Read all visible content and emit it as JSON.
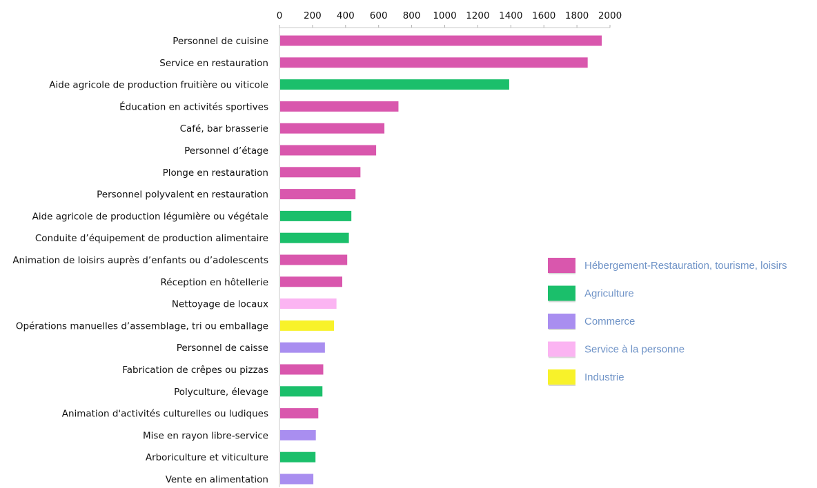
{
  "chart_data": {
    "type": "bar",
    "orientation": "horizontal",
    "title": "",
    "xlabel": "",
    "ylabel": "",
    "xlim": [
      0,
      2000
    ],
    "x_ticks": [
      0,
      200,
      400,
      600,
      800,
      1000,
      1200,
      1400,
      1600,
      1800,
      2000
    ],
    "x_axis_position": "top",
    "grid": false,
    "legend_position": "right",
    "series_colors": {
      "Hébergement-Restauration, tourisme, loisirs": "#d957ad",
      "Agriculture": "#1bbf6b",
      "Commerce": "#a98ef0",
      "Service à la personne": "#fbb4f2",
      "Industrie": "#f8f22a"
    },
    "legend": [
      "Hébergement-Restauration, tourisme, loisirs",
      "Agriculture",
      "Commerce",
      "Service à la personne",
      "Industrie"
    ],
    "bars": [
      {
        "label": "Personnel de cuisine",
        "value": 1950,
        "series": "Hébergement-Restauration, tourisme, loisirs"
      },
      {
        "label": "Service en restauration",
        "value": 1865,
        "series": "Hébergement-Restauration, tourisme, loisirs"
      },
      {
        "label": "Aide agricole de production fruitière ou viticole",
        "value": 1390,
        "series": "Agriculture"
      },
      {
        "label": "Éducation en activités sportives",
        "value": 720,
        "series": "Hébergement-Restauration, tourisme, loisirs"
      },
      {
        "label": "Café, bar brasserie",
        "value": 635,
        "series": "Hébergement-Restauration, tourisme, loisirs"
      },
      {
        "label": "Personnel d’étage",
        "value": 585,
        "series": "Hébergement-Restauration, tourisme, loisirs"
      },
      {
        "label": "Plonge en restauration",
        "value": 490,
        "series": "Hébergement-Restauration, tourisme, loisirs"
      },
      {
        "label": "Personnel polyvalent en restauration",
        "value": 460,
        "series": "Hébergement-Restauration, tourisme, loisirs"
      },
      {
        "label": "Aide agricole de production légumière ou végétale",
        "value": 435,
        "series": "Agriculture"
      },
      {
        "label": "Conduite d’équipement de production alimentaire",
        "value": 420,
        "series": "Agriculture"
      },
      {
        "label": "Animation de loisirs auprès d’enfants ou d’adolescents",
        "value": 410,
        "series": "Hébergement-Restauration, tourisme, loisirs"
      },
      {
        "label": "Réception en hôtellerie",
        "value": 380,
        "series": "Hébergement-Restauration, tourisme, loisirs"
      },
      {
        "label": "Nettoyage de locaux",
        "value": 345,
        "series": "Service à la personne"
      },
      {
        "label": "Opérations manuelles d’assemblage, tri ou emballage",
        "value": 330,
        "series": "Industrie"
      },
      {
        "label": "Personnel de caisse",
        "value": 275,
        "series": "Commerce"
      },
      {
        "label": "Fabrication de crêpes ou pizzas",
        "value": 265,
        "series": "Hébergement-Restauration, tourisme, loisirs"
      },
      {
        "label": "Polyculture, élevage",
        "value": 260,
        "series": "Agriculture"
      },
      {
        "label": "Animation d'activités culturelles ou ludiques",
        "value": 235,
        "series": "Hébergement-Restauration, tourisme, loisirs"
      },
      {
        "label": "Mise en rayon libre-service",
        "value": 220,
        "series": "Commerce"
      },
      {
        "label": "Arboriculture et viticulture",
        "value": 218,
        "series": "Agriculture"
      },
      {
        "label": "Vente en alimentation",
        "value": 205,
        "series": "Commerce"
      }
    ]
  }
}
